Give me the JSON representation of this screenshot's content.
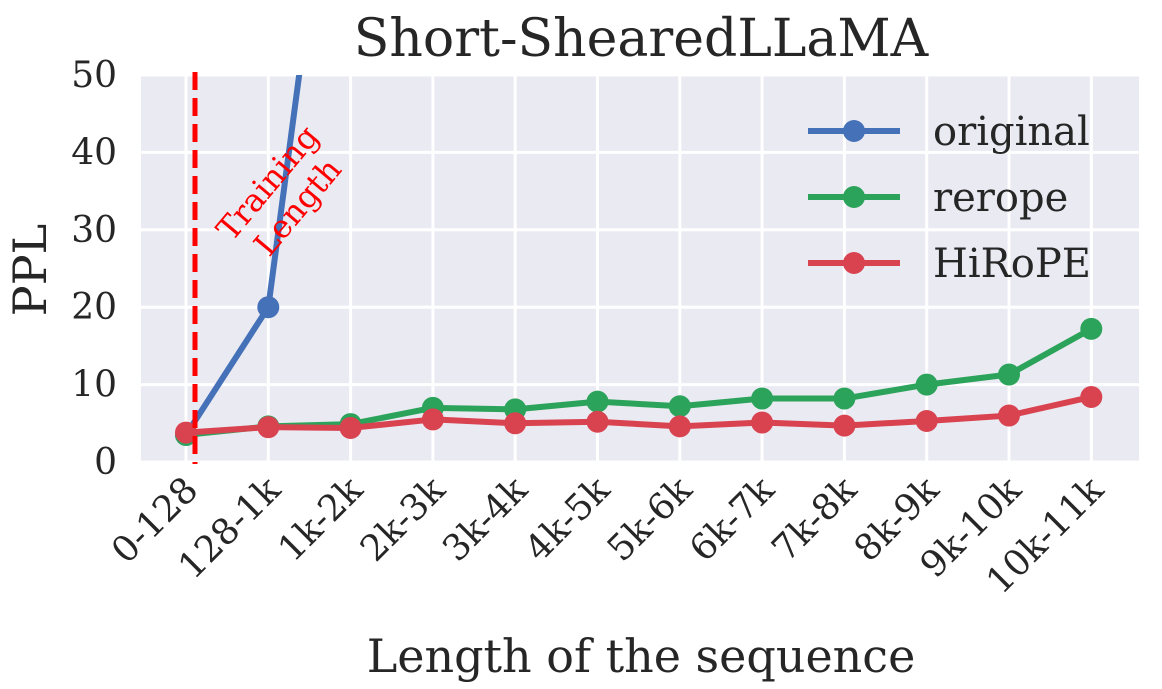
{
  "chart_data": {
    "type": "line",
    "title": "Short-ShearedLLaMA",
    "xlabel": "Length of the sequence",
    "ylabel": "PPL",
    "categories": [
      "0-128",
      "128-1k",
      "1k-2k",
      "2k-3k",
      "3k-4k",
      "4k-5k",
      "5k-6k",
      "6k-7k",
      "7k-8k",
      "8k-9k",
      "9k-10k",
      "10k-11k"
    ],
    "yticks": [
      "0",
      "10",
      "20",
      "30",
      "40",
      "50"
    ],
    "ylim": [
      0,
      50
    ],
    "grid": true,
    "legend_position": "top-right",
    "series": [
      {
        "name": "original",
        "color": "#4471b7",
        "values": [
          3.5,
          20,
          100,
          null,
          null,
          null,
          null,
          null,
          null,
          null,
          null,
          null
        ]
      },
      {
        "name": "rerope",
        "color": "#2ca35a",
        "values": [
          3.5,
          4.6,
          4.9,
          7.0,
          6.8,
          7.8,
          7.2,
          8.2,
          8.2,
          10.0,
          11.3,
          17.2
        ]
      },
      {
        "name": "HiRoPE",
        "color": "#d94350",
        "values": [
          3.8,
          4.5,
          4.4,
          5.5,
          5.0,
          5.2,
          4.6,
          5.1,
          4.7,
          5.3,
          6.0,
          8.4
        ]
      }
    ],
    "annotation": {
      "text_line1": "Training",
      "text_line2": "Length",
      "color": "#ff0000",
      "x_category": "0-128"
    }
  }
}
